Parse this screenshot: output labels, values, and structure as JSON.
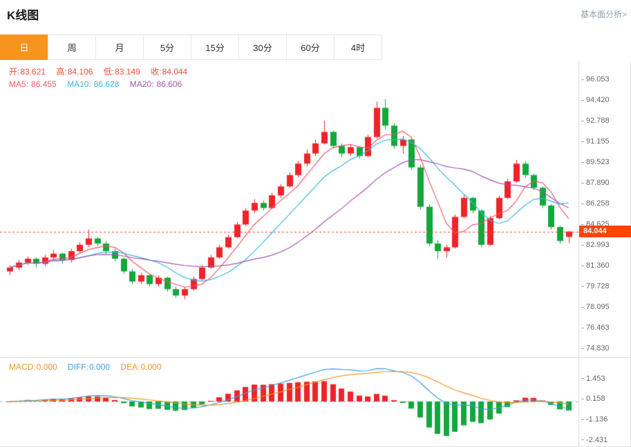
{
  "header": {
    "title": "K线图",
    "analysis_link": "基本面分析>"
  },
  "tabs": [
    {
      "label": "日",
      "active": true
    },
    {
      "label": "周",
      "active": false
    },
    {
      "label": "月",
      "active": false
    },
    {
      "label": "5分",
      "active": false
    },
    {
      "label": "15分",
      "active": false
    },
    {
      "label": "30分",
      "active": false
    },
    {
      "label": "60分",
      "active": false
    },
    {
      "label": "4时",
      "active": false
    }
  ],
  "legend": {
    "ohlc": {
      "open_label": "开:",
      "open": "83.621",
      "high_label": "高:",
      "high": "84.106",
      "low_label": "低:",
      "low": "83.149",
      "close_label": "收:",
      "close": "84.044"
    },
    "ma": {
      "ma5_label": "MA5:",
      "ma5": "86.455",
      "ma10_label": "MA10:",
      "ma10": "86.628",
      "ma20_label": "MA20:",
      "ma20": "86.606"
    },
    "macd": {
      "macd_label": "MACD:",
      "macd": "0.000",
      "diff_label": "DIFF:",
      "diff": "0.000",
      "dea_label": "DEA:",
      "dea": "0.000"
    }
  },
  "colors": {
    "up": "#ef232a",
    "down": "#14a73c",
    "ma5": "#f5576c",
    "ma10": "#36b8e0",
    "ma20": "#a653b0",
    "diff": "#3b9fe6",
    "dea": "#f7931e",
    "price_line": "#ff4422",
    "price_tag_bg": "#ff4400",
    "zero_line": "#7ecfe0",
    "tab_active_bg": "#f7941d",
    "axis_text": "#666666"
  },
  "chart_data": {
    "type": "candlestick",
    "period": "日",
    "title": "K线图",
    "y_ticks": [
      96.053,
      94.42,
      92.788,
      91.155,
      89.523,
      87.89,
      86.258,
      84.625,
      82.993,
      81.36,
      79.728,
      78.095,
      76.463,
      74.83
    ],
    "macd_y_ticks": [
      1.453,
      0.158,
      -1.136,
      -2.431
    ],
    "current_price": 84.044,
    "current_price_label": "84.044",
    "ohlc_latest": {
      "open": 83.621,
      "high": 84.106,
      "low": 83.149,
      "close": 84.044
    },
    "ma_periods": [
      5,
      10,
      20
    ],
    "ma_latest": {
      "ma5": 86.455,
      "ma10": 86.628,
      "ma20": 86.606
    },
    "macd_params": [
      12,
      26,
      9
    ],
    "macd_latest": {
      "macd": 0.0,
      "diff": 0.0,
      "dea": 0.0
    },
    "candles": [
      [
        80.9,
        81.4,
        80.6,
        81.2
      ],
      [
        81.2,
        81.8,
        81.0,
        81.6
      ],
      [
        81.6,
        82.1,
        81.4,
        81.9
      ],
      [
        81.9,
        82.0,
        81.2,
        81.5
      ],
      [
        81.5,
        82.2,
        81.3,
        82.0
      ],
      [
        82.0,
        82.6,
        81.8,
        82.3
      ],
      [
        82.3,
        82.4,
        81.5,
        81.8
      ],
      [
        81.8,
        82.7,
        81.6,
        82.5
      ],
      [
        82.5,
        83.2,
        82.3,
        83.0
      ],
      [
        83.0,
        84.2,
        82.8,
        83.5
      ],
      [
        83.5,
        83.6,
        82.9,
        83.1
      ],
      [
        83.1,
        83.3,
        82.3,
        82.5
      ],
      [
        82.5,
        82.7,
        81.7,
        81.9
      ],
      [
        81.9,
        82.0,
        80.7,
        80.9
      ],
      [
        80.9,
        81.1,
        79.9,
        80.1
      ],
      [
        80.1,
        80.8,
        79.9,
        80.6
      ],
      [
        80.6,
        80.7,
        79.7,
        79.9
      ],
      [
        79.9,
        80.6,
        79.7,
        80.4
      ],
      [
        80.4,
        80.5,
        79.3,
        79.5
      ],
      [
        79.5,
        79.7,
        78.8,
        79.0
      ],
      [
        79.0,
        79.7,
        78.7,
        79.5
      ],
      [
        79.5,
        80.5,
        79.4,
        80.3
      ],
      [
        80.3,
        81.4,
        80.2,
        81.2
      ],
      [
        81.2,
        82.2,
        81.1,
        82.0
      ],
      [
        82.0,
        83.0,
        81.9,
        82.8
      ],
      [
        82.8,
        83.8,
        82.7,
        83.6
      ],
      [
        83.6,
        84.8,
        83.5,
        84.6
      ],
      [
        84.6,
        85.9,
        84.5,
        85.7
      ],
      [
        85.7,
        86.6,
        85.5,
        86.3
      ],
      [
        86.3,
        86.5,
        85.7,
        85.9
      ],
      [
        85.9,
        87.1,
        85.8,
        86.9
      ],
      [
        86.9,
        87.8,
        86.7,
        87.6
      ],
      [
        87.6,
        88.7,
        87.5,
        88.5
      ],
      [
        88.5,
        89.6,
        88.3,
        89.4
      ],
      [
        89.4,
        90.5,
        89.2,
        90.2
      ],
      [
        90.2,
        91.3,
        90.0,
        91.0
      ],
      [
        91.0,
        92.8,
        90.9,
        91.9
      ],
      [
        91.9,
        92.0,
        90.6,
        90.8
      ],
      [
        90.8,
        91.0,
        89.9,
        90.2
      ],
      [
        90.2,
        90.9,
        90.0,
        90.7
      ],
      [
        90.7,
        90.8,
        89.8,
        90.0
      ],
      [
        90.0,
        91.7,
        89.9,
        91.5
      ],
      [
        91.5,
        94.3,
        91.4,
        93.8
      ],
      [
        93.8,
        94.5,
        92.1,
        92.4
      ],
      [
        92.4,
        92.6,
        90.6,
        90.8
      ],
      [
        90.8,
        91.6,
        90.2,
        91.3
      ],
      [
        91.3,
        91.4,
        88.9,
        89.1
      ],
      [
        89.1,
        89.3,
        85.8,
        86.0
      ],
      [
        86.0,
        86.2,
        82.9,
        83.1
      ],
      [
        83.1,
        83.4,
        81.9,
        82.5
      ],
      [
        82.5,
        83.0,
        82.0,
        82.8
      ],
      [
        82.8,
        85.4,
        82.7,
        85.2
      ],
      [
        85.2,
        86.9,
        85.1,
        86.7
      ],
      [
        86.7,
        86.8,
        85.5,
        85.7
      ],
      [
        85.7,
        85.8,
        82.8,
        83.0
      ],
      [
        83.0,
        85.3,
        82.9,
        85.1
      ],
      [
        85.1,
        86.9,
        85.0,
        86.7
      ],
      [
        86.7,
        88.2,
        86.6,
        88.0
      ],
      [
        88.0,
        89.7,
        87.9,
        89.4
      ],
      [
        89.4,
        89.6,
        88.3,
        88.5
      ],
      [
        88.5,
        88.6,
        87.3,
        87.5
      ],
      [
        87.5,
        87.6,
        85.9,
        86.1
      ],
      [
        86.1,
        86.2,
        84.2,
        84.4
      ],
      [
        84.4,
        84.5,
        83.1,
        83.3
      ],
      [
        83.621,
        84.106,
        83.149,
        84.044
      ]
    ]
  }
}
